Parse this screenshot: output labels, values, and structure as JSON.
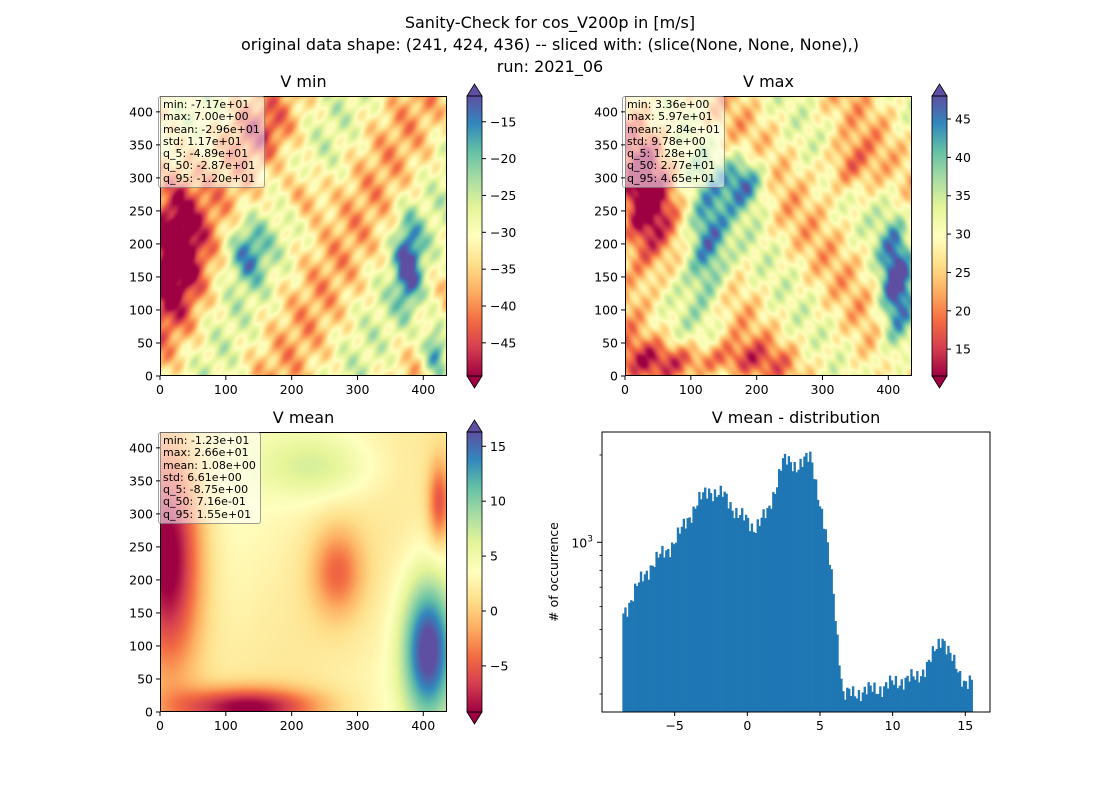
{
  "figure": {
    "title_line1": "Sanity-Check for cos_V200p in [m/s]",
    "title_line2": "original data shape: (241, 424, 436) -- sliced with: (slice(None, None, None),)",
    "title_line3": "run: 2021_06"
  },
  "colormap": "Spectral",
  "chart_data": [
    {
      "type": "heatmap",
      "title": "V min",
      "xlim": [
        0,
        436
      ],
      "ylim": [
        0,
        424
      ],
      "x_ticks": [
        "0",
        "100",
        "200",
        "300",
        "400"
      ],
      "y_ticks": [
        "0",
        "50",
        "100",
        "150",
        "200",
        "250",
        "300",
        "350",
        "400"
      ],
      "colorbar": {
        "range": [
          -49.5,
          -11.5
        ],
        "ticks": [
          "-15",
          "-20",
          "-25",
          "-30",
          "-35",
          "-40",
          "-45"
        ],
        "extend": "both"
      },
      "stats": [
        "min: -7.17e+01",
        "max: 7.00e+00",
        "mean: -2.96e+01",
        "std: 1.17e+01",
        "q_5: -4.89e+01",
        "q_50: -2.87e+01",
        "q_95: -1.20e+01"
      ]
    },
    {
      "type": "heatmap",
      "title": "V max",
      "xlim": [
        0,
        436
      ],
      "ylim": [
        0,
        424
      ],
      "x_ticks": [
        "0",
        "100",
        "200",
        "300",
        "400"
      ],
      "y_ticks": [
        "0",
        "50",
        "100",
        "150",
        "200",
        "250",
        "300",
        "350",
        "400"
      ],
      "colorbar": {
        "range": [
          11.5,
          48
        ],
        "ticks": [
          "45",
          "40",
          "35",
          "30",
          "25",
          "20",
          "15"
        ],
        "extend": "both"
      },
      "stats": [
        "min: 3.36e+00",
        "max: 5.97e+01",
        "mean: 2.84e+01",
        "std: 9.78e+00",
        "q_5: 1.28e+01",
        "q_50: 2.77e+01",
        "q_95: 4.65e+01"
      ]
    },
    {
      "type": "heatmap",
      "title": "V mean",
      "xlim": [
        0,
        436
      ],
      "ylim": [
        0,
        424
      ],
      "x_ticks": [
        "0",
        "100",
        "200",
        "300",
        "400"
      ],
      "y_ticks": [
        "0",
        "50",
        "100",
        "150",
        "200",
        "250",
        "300",
        "350",
        "400"
      ],
      "colorbar": {
        "range": [
          -9.2,
          16.3
        ],
        "ticks": [
          "15",
          "10",
          "5",
          "0",
          "-5"
        ],
        "extend": "both"
      },
      "stats": [
        "min: -1.23e+01",
        "max: 2.66e+01",
        "mean: 1.08e+00",
        "std: 6.61e+00",
        "q_5: -8.75e+00",
        "q_50: 7.16e-01",
        "q_95: 1.55e+01"
      ]
    },
    {
      "type": "bar",
      "title": "V mean - distribution",
      "ylabel": "# of occurrence",
      "yscale": "log",
      "xlim": [
        -10.0,
        16.7
      ],
      "ylim": [
        260,
        2400
      ],
      "x_ticks": [
        "−5",
        "0",
        "5",
        "10",
        "15"
      ],
      "y_tick_label": "10",
      "y_tick_exp": "3",
      "color": "#1f77b4",
      "x": [
        -8.6,
        -7.6,
        -6.6,
        -5.6,
        -4.6,
        -3.6,
        -2.6,
        -1.6,
        -0.6,
        0.4,
        1.4,
        2.4,
        3.4,
        4.4,
        4.9,
        5.4,
        5.9,
        6.2,
        6.6,
        7.6,
        8.6,
        9.6,
        10.6,
        11.6,
        12.6,
        13.1,
        13.4,
        13.7,
        14.2,
        14.6,
        15.0,
        15.5
      ],
      "counts": [
        560,
        700,
        840,
        930,
        1080,
        1340,
        1520,
        1440,
        1250,
        1130,
        1250,
        1900,
        1850,
        1950,
        1460,
        1050,
        700,
        470,
        295,
        305,
        310,
        320,
        335,
        340,
        390,
        440,
        480,
        440,
        380,
        350,
        335,
        330
      ]
    }
  ]
}
